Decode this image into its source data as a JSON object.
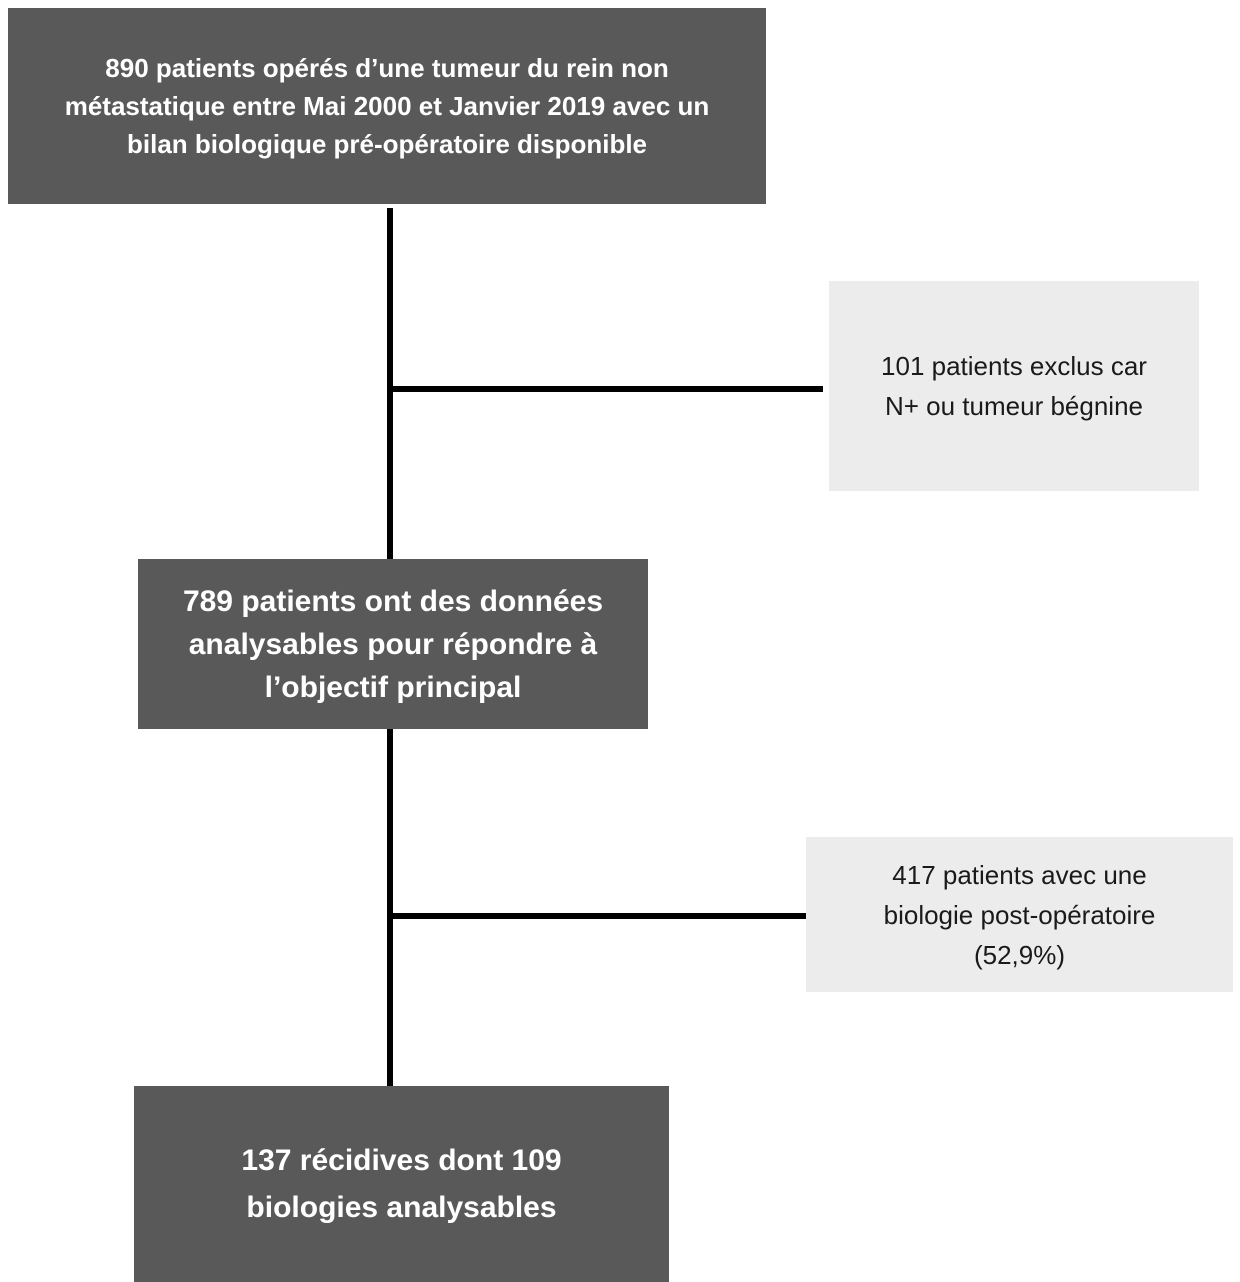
{
  "flowchart": {
    "top_box": "890 patients opérés d’une tumeur du rein non\nmétastatique entre Mai 2000 et Janvier 2019 avec un\nbilan biologique pré-opératoire disponible",
    "exclusion_box": "101 patients exclus car\nN+ ou tumeur bégnine",
    "middle_box": "789 patients ont des données\nanalysables pour répondre à\nl’objectif principal",
    "postop_box": "417 patients avec une\nbiologie post-opératoire\n(52,9%)",
    "bottom_box": "137 récidives dont 109\nbiologies analysables"
  },
  "colors": {
    "main_box_fill": "#595959",
    "main_box_text": "#ffffff",
    "side_box_fill": "#ececec",
    "side_box_text": "#1a1a1a",
    "connector": "#000000"
  }
}
